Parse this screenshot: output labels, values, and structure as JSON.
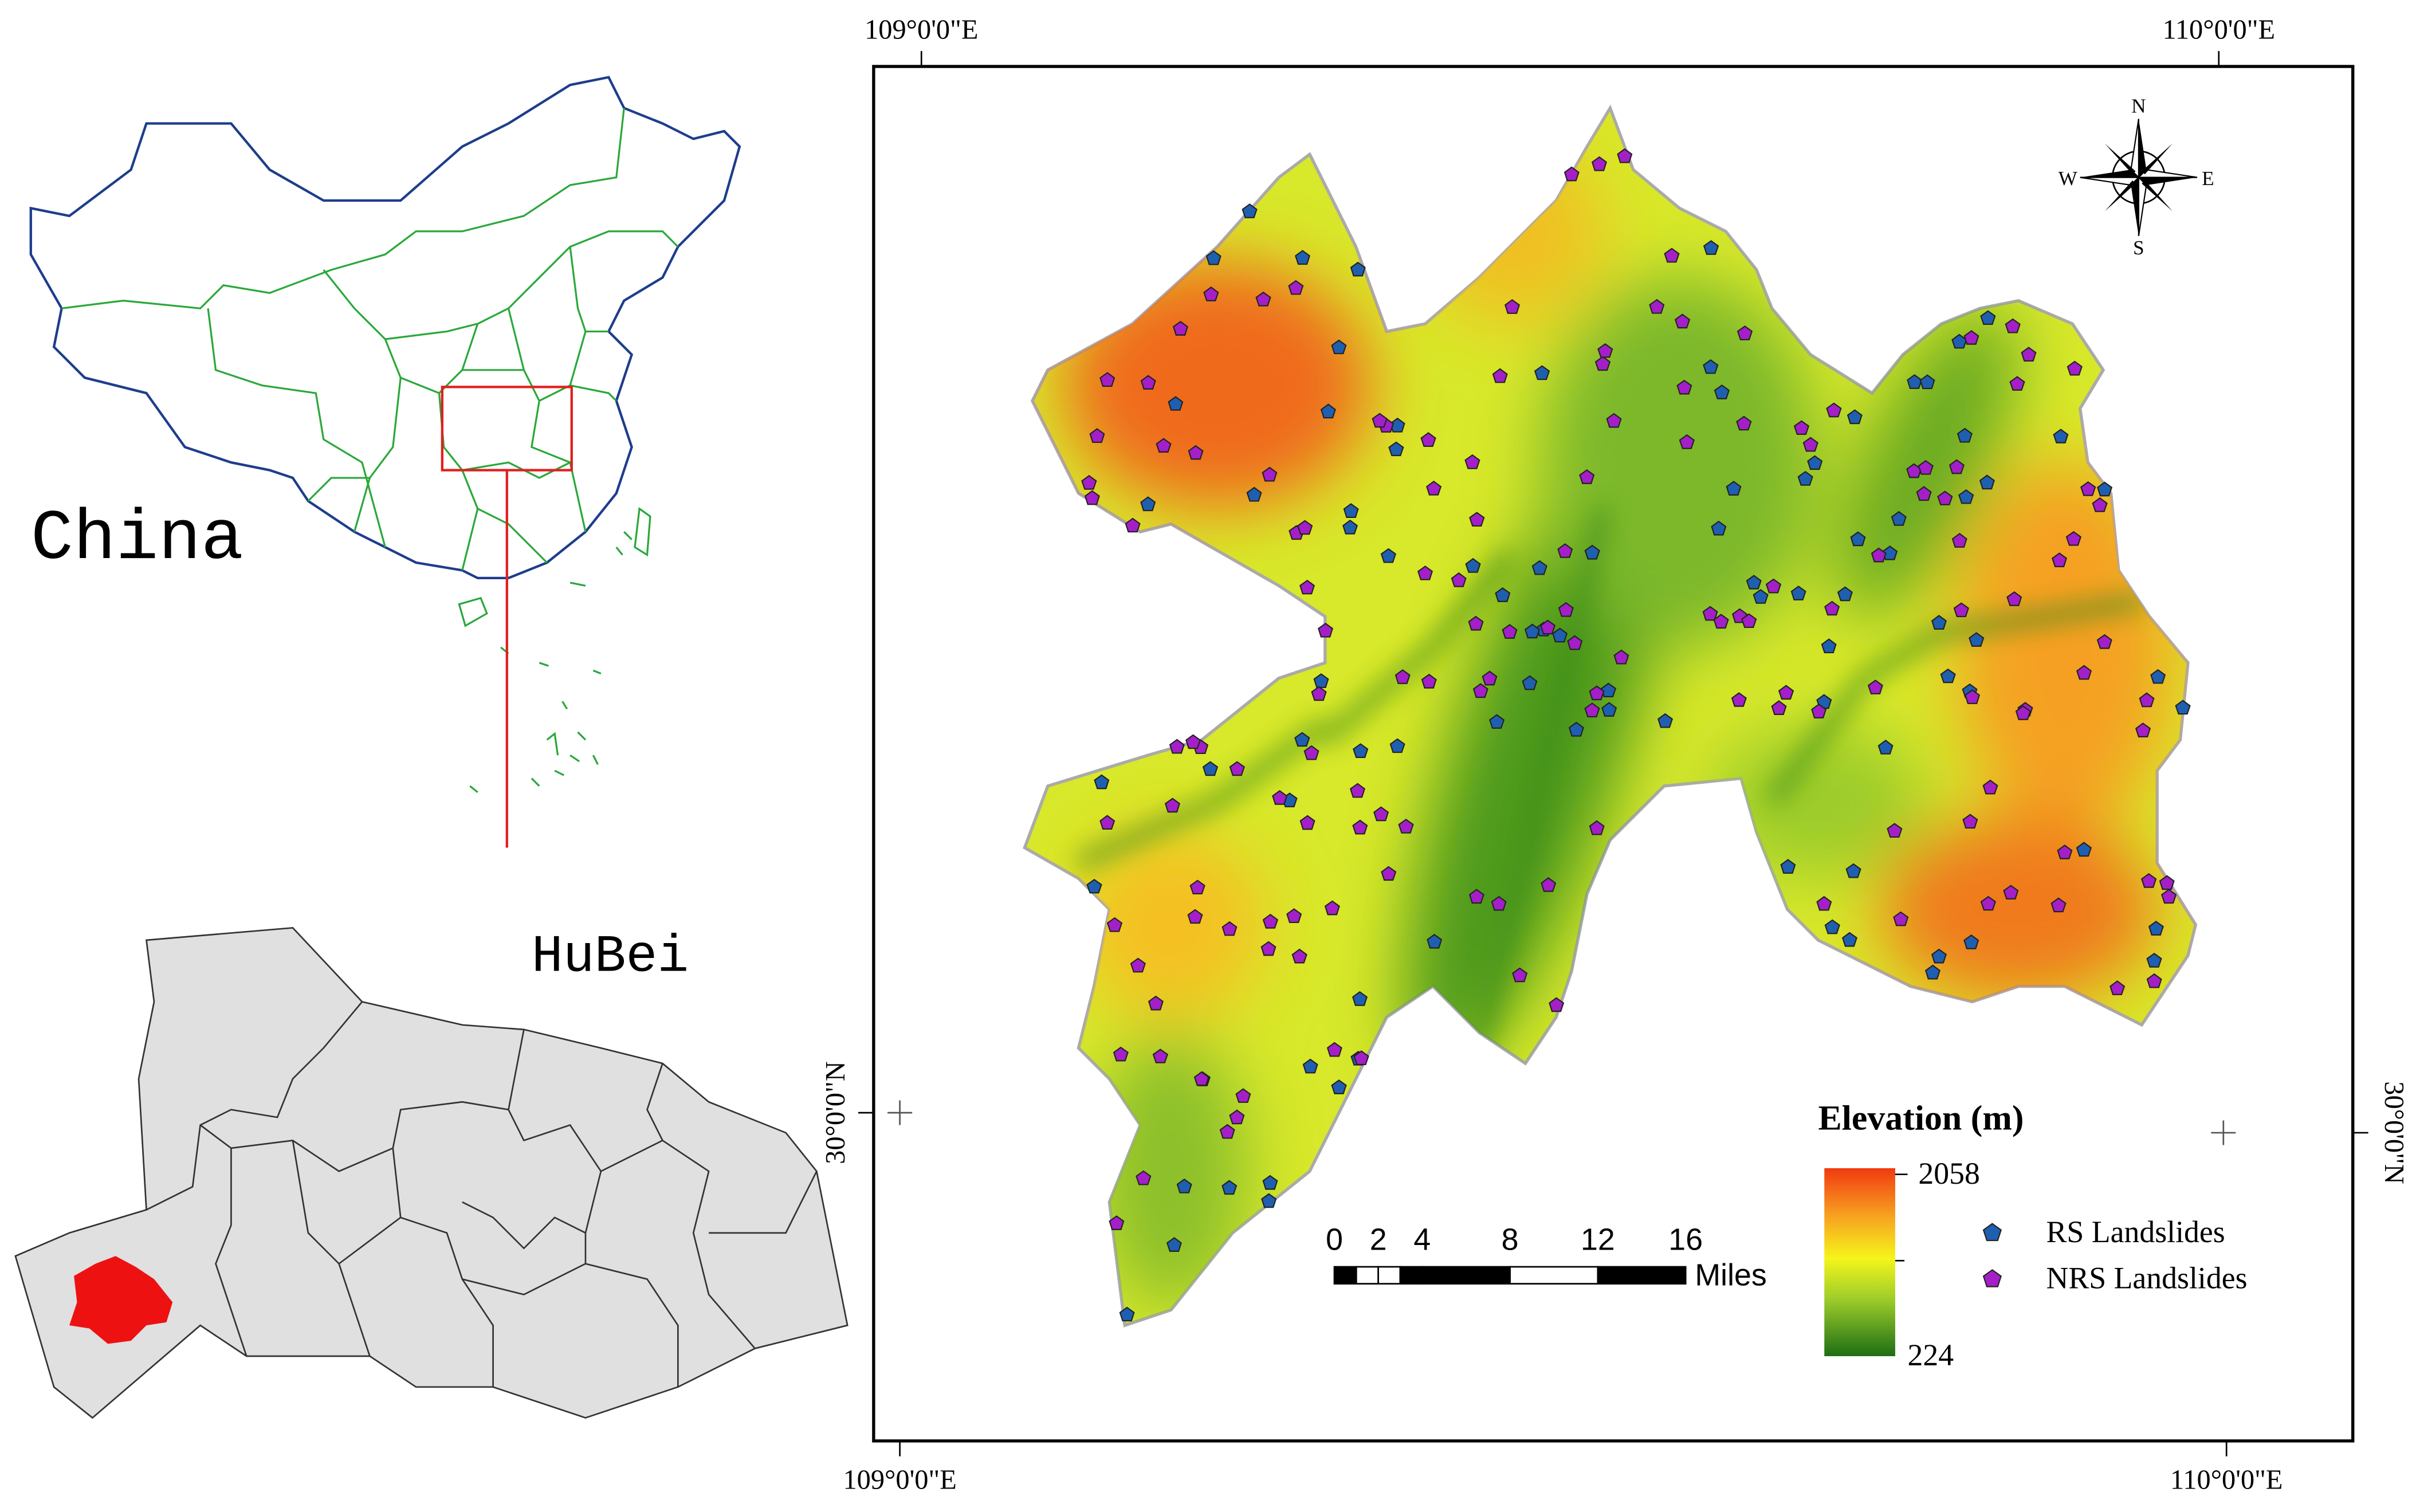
{
  "inset_china": {
    "label": "China"
  },
  "inset_hubei": {
    "label": "HuBei"
  },
  "map": {
    "graticule": {
      "top": [
        "109°0'0\"E",
        "110°0'0\"E"
      ],
      "bottom": [
        "109°0'0\"E",
        "110°0'0\"E"
      ],
      "left": "30°0'0\"N",
      "right": "30°0'0\"N"
    },
    "north_arrow": {
      "n": "N",
      "s": "S",
      "w": "W",
      "e": "E"
    },
    "legend": {
      "title": "Elevation (m)",
      "max": 2058,
      "min": 224,
      "items": [
        "RS Landslides",
        "NRS Landslides"
      ]
    },
    "scale_bar": {
      "ticks": [
        0,
        2,
        4,
        8,
        12,
        16
      ],
      "unit": "Miles"
    }
  }
}
